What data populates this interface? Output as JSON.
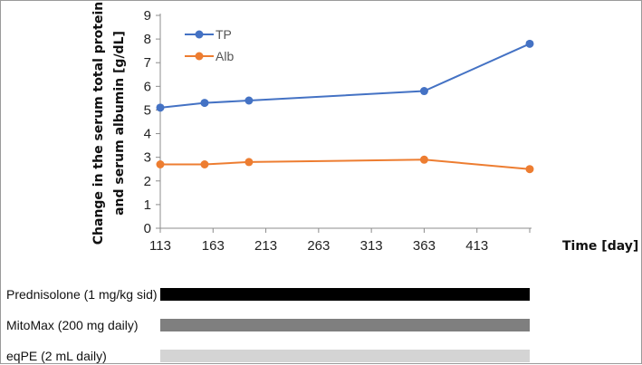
{
  "chart_data": {
    "type": "line",
    "title": "",
    "ylabel_line1": "Change in the serum total protein",
    "ylabel_line2": "and serum albumin [g/dL]",
    "xlabel": "Time [day]",
    "xlim": [
      113,
      463
    ],
    "ylim": [
      0,
      9
    ],
    "x_ticks": [
      113,
      163,
      213,
      263,
      313,
      363,
      413
    ],
    "y_ticks": [
      0,
      1,
      2,
      3,
      4,
      5,
      6,
      7,
      8,
      9
    ],
    "grid": false,
    "legend_position": "top-left",
    "series": [
      {
        "name": "TP",
        "color": "#4472c4",
        "points": [
          [
            113,
            5.1
          ],
          [
            155,
            5.3
          ],
          [
            197,
            5.4
          ],
          [
            363,
            5.8
          ],
          [
            463,
            7.8
          ]
        ]
      },
      {
        "name": "Alb",
        "color": "#ed7d31",
        "points": [
          [
            113,
            2.7
          ],
          [
            155,
            2.7
          ],
          [
            197,
            2.8
          ],
          [
            363,
            2.9
          ],
          [
            463,
            2.5
          ]
        ]
      }
    ]
  },
  "timeline": {
    "bars": [
      {
        "label": "Prednisolone (1 mg/kg sid)",
        "color": "#000000",
        "start": 113,
        "end": 463
      },
      {
        "label": "MitoMax (200 mg daily)",
        "color": "#7f7f7f",
        "start": 113,
        "end": 463
      },
      {
        "label": "eqPE (2 mL daily)",
        "color": "#d4d4d4",
        "start": 113,
        "end": 463
      }
    ]
  }
}
